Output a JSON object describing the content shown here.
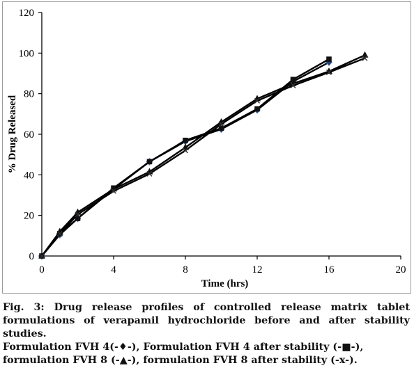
{
  "chart_data": {
    "type": "line",
    "xlabel": "Time (hrs)",
    "ylabel": "% Drug Released",
    "xlim": [
      0,
      20
    ],
    "ylim": [
      0,
      120
    ],
    "x_ticks": [
      "0",
      "4",
      "8",
      "12",
      "16",
      "20"
    ],
    "y_ticks": [
      "0",
      "20",
      "40",
      "60",
      "80",
      "100",
      "120"
    ],
    "grid": false,
    "series": [
      {
        "marker": "diamond",
        "color": "#1f3f7a",
        "x": [
          0,
          1,
          2,
          4,
          6,
          8,
          10,
          12,
          14,
          16
        ],
        "y": [
          0,
          10.5,
          18.5,
          33,
          46.5,
          56.5,
          62.5,
          72,
          86,
          95.5
        ]
      },
      {
        "marker": "square",
        "color": "#111111",
        "x": [
          0,
          1,
          2,
          4,
          6,
          8,
          10,
          12,
          14,
          16
        ],
        "y": [
          0,
          11,
          18.5,
          33.5,
          46.5,
          57,
          63,
          72.5,
          87,
          97
        ]
      },
      {
        "marker": "triangle",
        "color": "#111111",
        "x": [
          0,
          1,
          2,
          4,
          6,
          8,
          10,
          12,
          14,
          16,
          18
        ],
        "y": [
          0,
          12,
          21.5,
          33,
          41.5,
          53.5,
          66,
          77.5,
          85,
          91,
          99
        ]
      },
      {
        "marker": "x",
        "color": "#333333",
        "x": [
          0,
          1,
          2,
          4,
          6,
          8,
          10,
          12,
          14,
          16,
          18
        ],
        "y": [
          0,
          11,
          20.5,
          32,
          40.5,
          52,
          65,
          76.5,
          84,
          90.5,
          97.5
        ]
      }
    ]
  },
  "caption": {
    "title": "Fig. 3: Drug release profiles of controlled release matrix tablet formulations of verapamil hydrochloride before and after stability studies.",
    "legend_line1_a": "Formulation FVH 4(-",
    "legend_sym_diamond": "♦",
    "legend_line1_b": "-), Formulation FVH 4 after stability (-",
    "legend_sym_square": "■",
    "legend_line1_c": "-),",
    "legend_line2_a": "formulation FVH 8 (-",
    "legend_sym_triangle": "▲",
    "legend_line2_b": "-), formulation FVH 8 after stability (-x-)."
  }
}
